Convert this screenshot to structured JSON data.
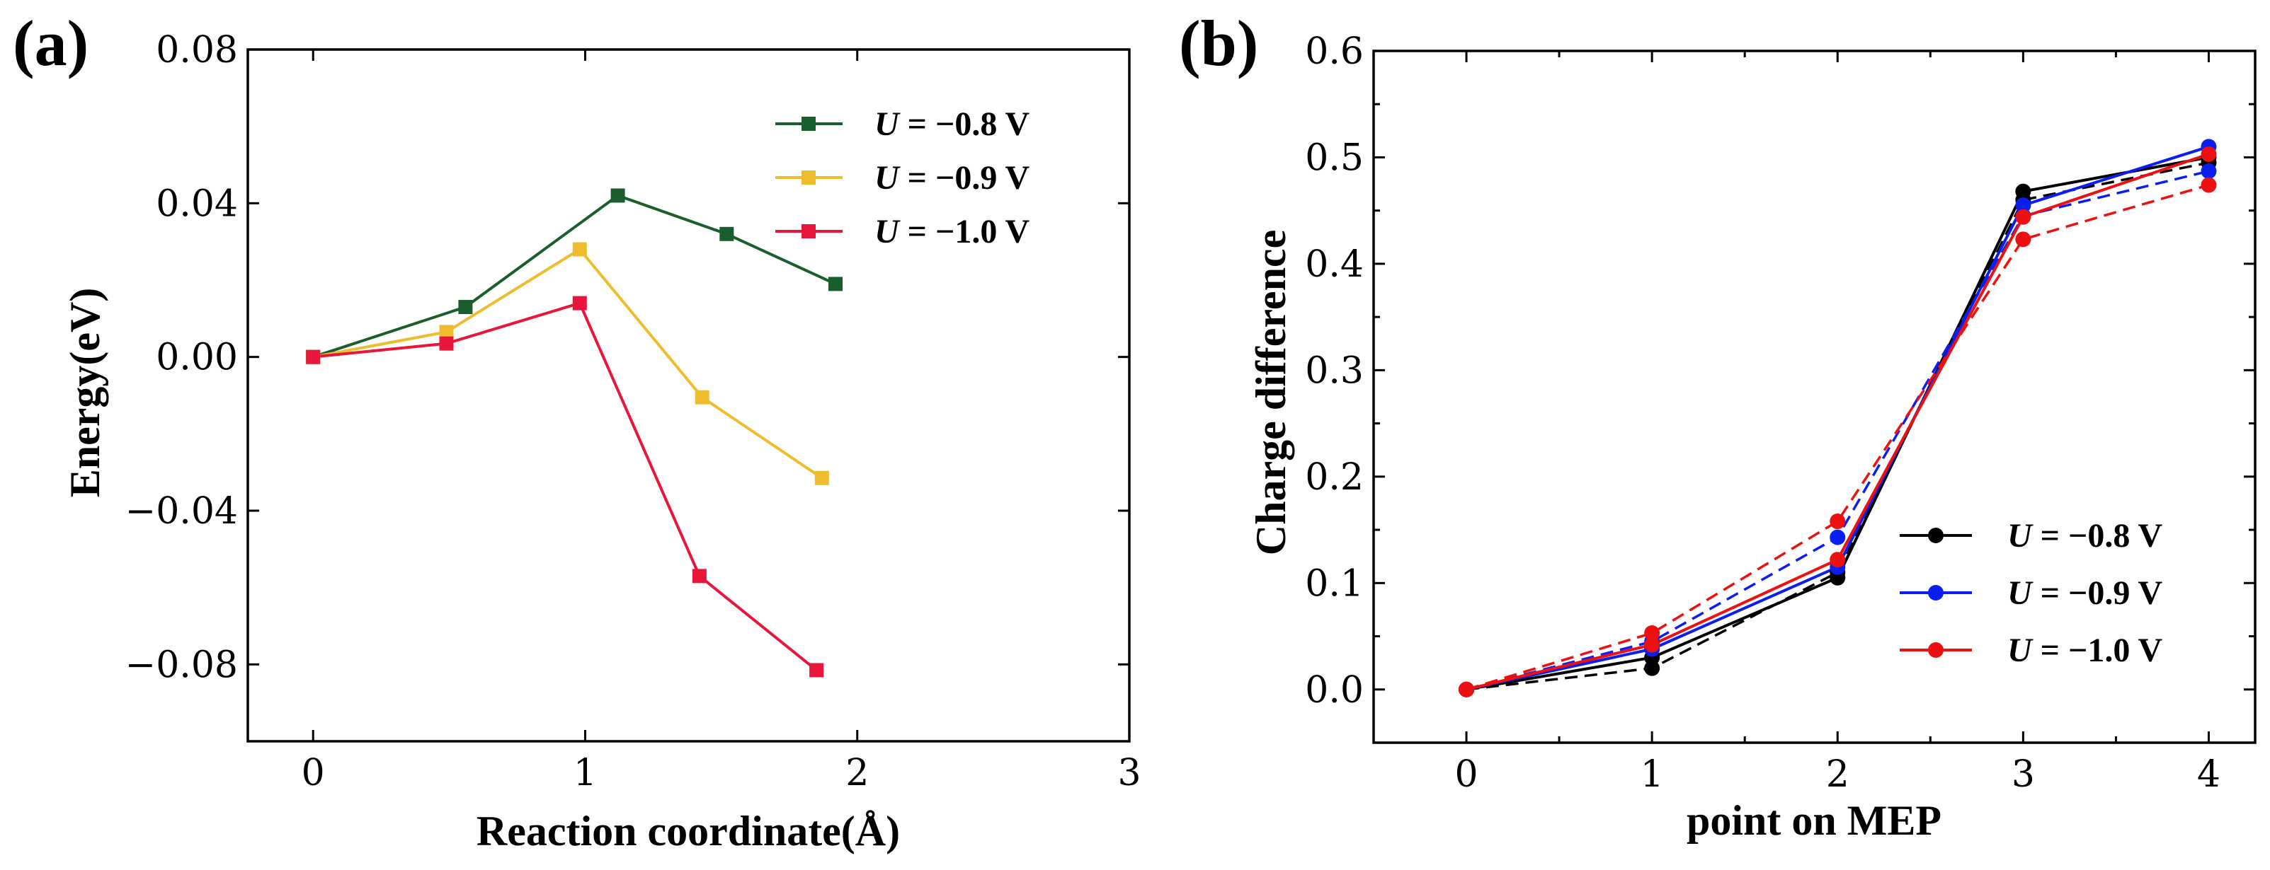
{
  "figure_labels": {
    "a": "(a)",
    "b": "(b)"
  },
  "chart_data": [
    {
      "type": "line",
      "panel": "(a)",
      "xlabel": "Reaction coordinate(Å)",
      "ylabel": "Energy(eV)",
      "xlim": [
        -0.24,
        3.0
      ],
      "ylim": [
        -0.1,
        0.08
      ],
      "xticks": [
        0,
        1,
        2,
        3
      ],
      "xtick_labels": [
        "0",
        "1",
        "2",
        "3"
      ],
      "yticks": [
        0.08,
        0.04,
        0.0,
        -0.04,
        -0.08
      ],
      "ytick_labels": [
        "0.08",
        "0.04",
        "0.00",
        "−0.04",
        "−0.08"
      ],
      "grid": false,
      "legend_position": "top-right",
      "marker": "square",
      "series": [
        {
          "label": "U",
          "name": " = −0.8 V",
          "color": "#1b5e2e",
          "x": [
            0,
            0.56,
            1.12,
            1.52,
            1.92
          ],
          "y": [
            0.0,
            0.013,
            0.042,
            0.032,
            0.019
          ]
        },
        {
          "label": "U",
          "name": " = −0.9 V",
          "color": "#eebd2e",
          "x": [
            0,
            0.49,
            0.98,
            1.43,
            1.87
          ],
          "y": [
            0.0,
            0.0065,
            0.028,
            -0.0105,
            -0.0315
          ]
        },
        {
          "label": "U",
          "name": " = −1.0 V",
          "color": "#e8163a",
          "x": [
            0,
            0.49,
            0.98,
            1.42,
            1.85
          ],
          "y": [
            0.0,
            0.0035,
            0.014,
            -0.057,
            -0.0815
          ]
        }
      ]
    },
    {
      "type": "line",
      "panel": "(b)",
      "xlabel": "point on MEP",
      "ylabel": "Charge difference",
      "xlim": [
        -0.5,
        4.25
      ],
      "ylim": [
        -0.05,
        0.6
      ],
      "xticks": [
        0,
        1,
        2,
        3,
        4
      ],
      "xtick_labels": [
        "0",
        "1",
        "2",
        "3",
        "4"
      ],
      "yticks": [
        0.0,
        0.1,
        0.2,
        0.3,
        0.4,
        0.5,
        0.6
      ],
      "ytick_labels": [
        "0.0",
        "0.1",
        "0.2",
        "0.3",
        "0.4",
        "0.5",
        "0.6"
      ],
      "grid": false,
      "legend_position": "bottom-right",
      "marker": "circle",
      "series": [
        {
          "label": "U",
          "name": " = −0.8 V",
          "color": "#000000",
          "x": [
            0,
            1,
            2,
            3,
            4
          ],
          "solid": [
            0.0,
            0.03,
            0.105,
            0.468,
            0.5
          ],
          "dashed": [
            0.0,
            0.02,
            0.11,
            0.46,
            0.495
          ]
        },
        {
          "label": "U",
          "name": " = −0.9 V",
          "color": "#0a1ef0",
          "x": [
            0,
            1,
            2,
            3,
            4
          ],
          "solid": [
            0.0,
            0.038,
            0.115,
            0.455,
            0.51
          ],
          "dashed": [
            0.0,
            0.045,
            0.143,
            0.445,
            0.487
          ]
        },
        {
          "label": "U",
          "name": " = −1.0 V",
          "color": "#ec1010",
          "x": [
            0,
            1,
            2,
            3,
            4
          ],
          "solid": [
            0.0,
            0.042,
            0.122,
            0.444,
            0.503
          ],
          "dashed": [
            0.0,
            0.053,
            0.158,
            0.423,
            0.474
          ]
        }
      ]
    }
  ]
}
